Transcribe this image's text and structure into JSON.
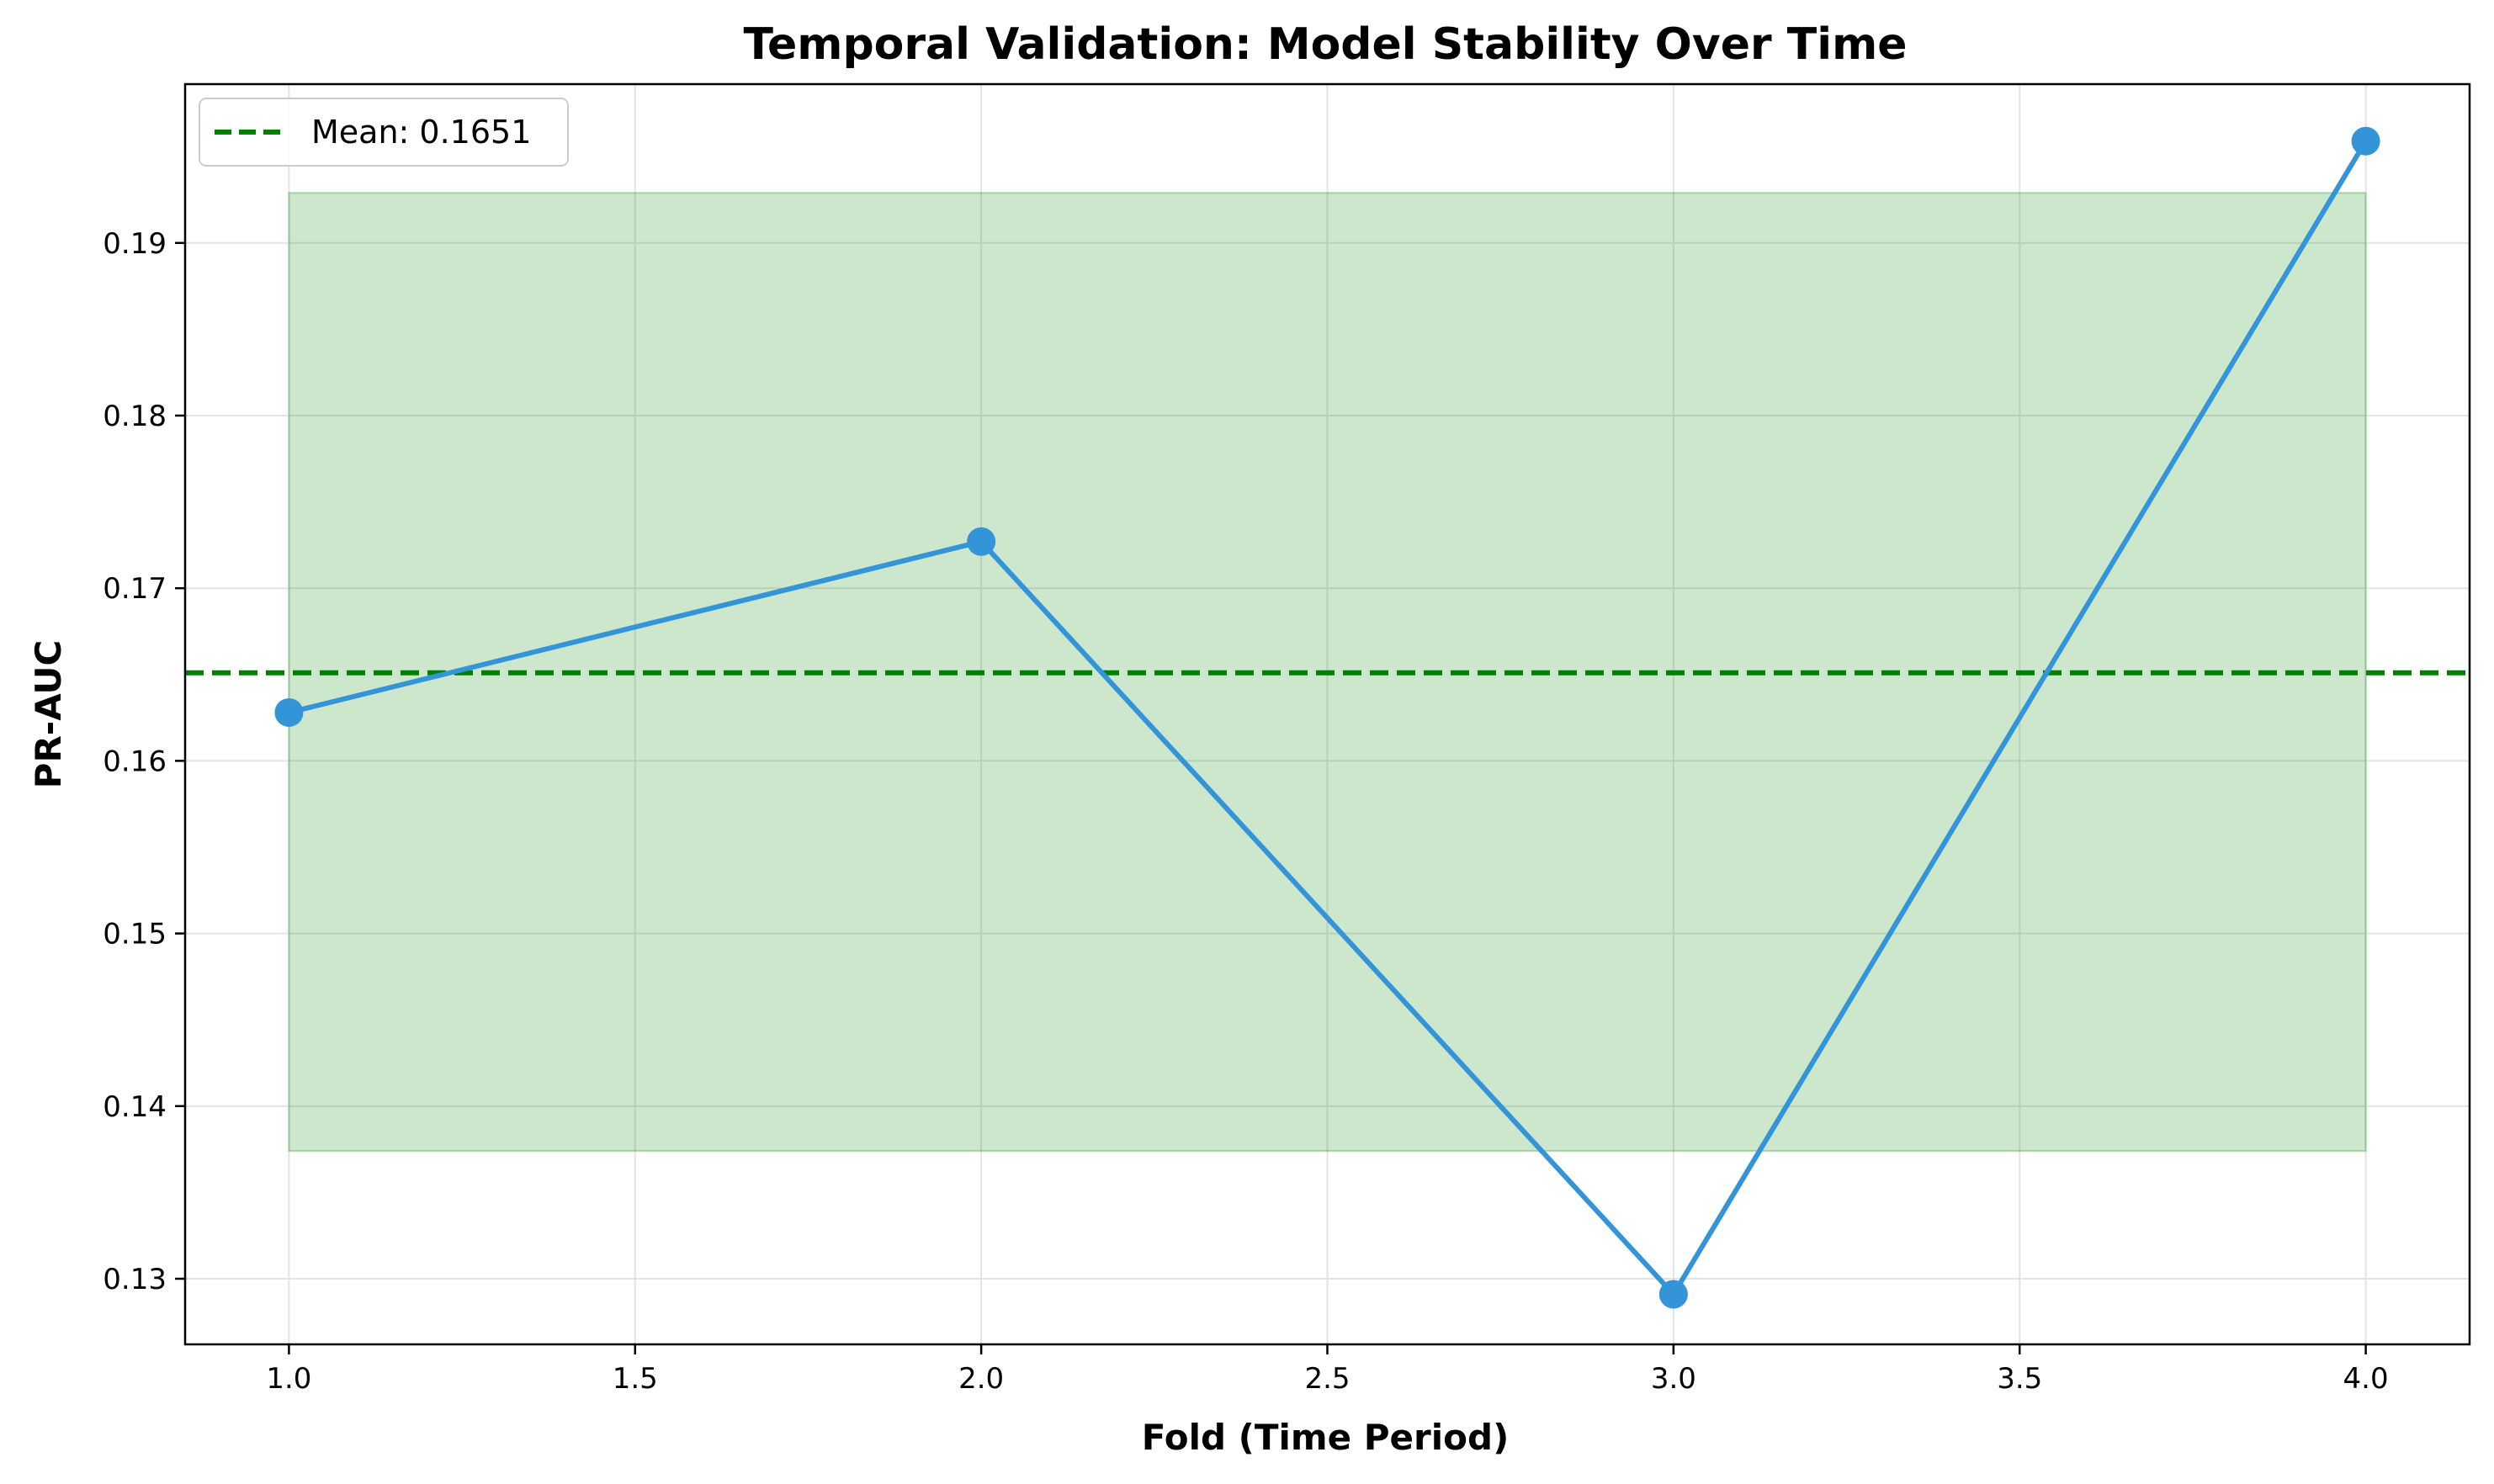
{
  "chart_data": {
    "type": "line",
    "title": "Temporal Validation: Model Stability Over Time",
    "xlabel": "Fold (Time Period)",
    "ylabel": "PR-AUC",
    "xlim": [
      0.85,
      4.15
    ],
    "ylim": [
      0.1262,
      0.1992
    ],
    "x_ticks": [
      1.0,
      1.5,
      2.0,
      2.5,
      3.0,
      3.5,
      4.0
    ],
    "x_tick_labels": [
      "1.0",
      "1.5",
      "2.0",
      "2.5",
      "3.0",
      "3.5",
      "4.0"
    ],
    "y_ticks": [
      0.13,
      0.14,
      0.15,
      0.16,
      0.17,
      0.18,
      0.19
    ],
    "y_tick_labels": [
      "0.13",
      "0.14",
      "0.15",
      "0.16",
      "0.17",
      "0.18",
      "0.19"
    ],
    "grid": true,
    "series": [
      {
        "x": [
          1,
          2,
          3,
          4
        ],
        "values": [
          0.1628,
          0.1727,
          0.1291,
          0.1959
        ],
        "color": "#3494d8"
      }
    ],
    "mean_line": {
      "value": 0.1651,
      "label": "Mean: 0.1651",
      "color": "#008000",
      "style": "dashed"
    },
    "band": {
      "x_range": [
        1,
        4
      ],
      "y_range": [
        0.1374,
        0.1929
      ],
      "color": "#2e9a2e",
      "opacity": 0.24
    },
    "legend_position": "top-left"
  }
}
